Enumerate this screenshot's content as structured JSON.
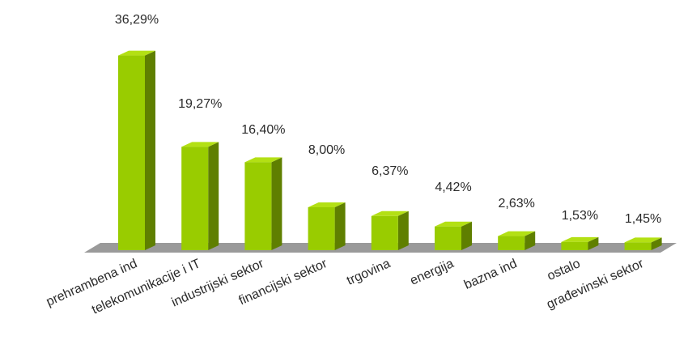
{
  "chart_data": {
    "type": "bar",
    "categories": [
      "prehrambena ind",
      "telekomunikacije i IT",
      "industrijski sektor",
      "financijski sektor",
      "trgovina",
      "energija",
      "bazna ind",
      "ostalo",
      "građevinski sektor"
    ],
    "values": [
      36.29,
      19.27,
      16.4,
      8.0,
      6.37,
      4.42,
      2.63,
      1.53,
      1.45
    ],
    "data_labels": [
      "36,29%",
      "19,27%",
      "16,40%",
      "8,00%",
      "6,37%",
      "4,42%",
      "2,63%",
      "1,53%",
      "1,45%"
    ],
    "title": "",
    "xlabel": "",
    "ylabel": "",
    "ylim": [
      0,
      40
    ],
    "grid": false,
    "legend": "none",
    "style": "3d-bar",
    "colors": {
      "bar_front": "#99cc00",
      "bar_side": "#5f7f00",
      "bar_top": "#b3e014",
      "floor": "#9a9a9a",
      "text": "#2b2b2b"
    }
  }
}
